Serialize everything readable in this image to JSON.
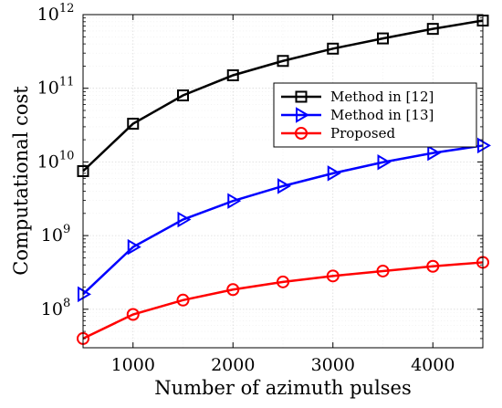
{
  "chart_data": {
    "type": "line",
    "xlabel": "Number of azimuth pulses",
    "ylabel": "Computational cost",
    "x_scale": "linear",
    "y_scale": "log",
    "xlim": [
      500,
      4500
    ],
    "ylim": [
      30000000,
      1000000000000
    ],
    "x_ticks": [
      1000,
      2000,
      3000,
      4000
    ],
    "y_tick_exponents": [
      8,
      9,
      10,
      11,
      12
    ],
    "grid": true,
    "legend_position": "top-right",
    "x": [
      500,
      1000,
      1500,
      2000,
      2500,
      3000,
      3500,
      4000,
      4500
    ],
    "series": [
      {
        "name": "Method in [12]",
        "color": "#000000",
        "marker": "square",
        "values": [
          7500000000,
          33000000000,
          80000000000,
          150000000000,
          235000000000,
          345000000000,
          475000000000,
          640000000000,
          830000000000
        ]
      },
      {
        "name": "Method in [13]",
        "color": "#0000ff",
        "marker": "triangle-right",
        "values": [
          160000000,
          700000000,
          1650000000,
          2950000000,
          4700000000,
          7000000000,
          9900000000,
          13200000000,
          16700000000
        ]
      },
      {
        "name": "Proposed",
        "color": "#ff0000",
        "marker": "circle",
        "values": [
          40000000,
          85000000,
          133000000,
          185000000,
          235000000,
          283000000,
          330000000,
          383000000,
          433000000
        ]
      }
    ]
  }
}
